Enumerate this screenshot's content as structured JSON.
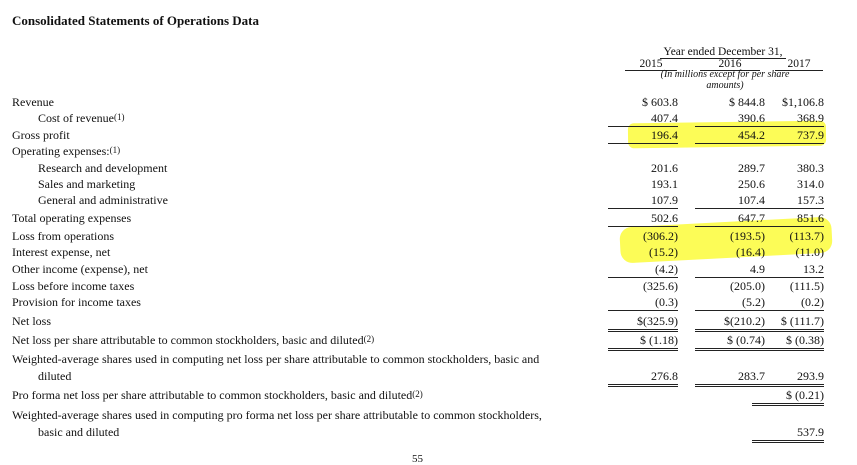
{
  "title": "Consolidated Statements of Operations Data",
  "header": {
    "period": "Year ended December 31,",
    "years": [
      "2015",
      "2016",
      "2017"
    ],
    "note": "(In millions except for per share amounts)"
  },
  "rows": [
    {
      "label": "Revenue",
      "sup": "",
      "v": [
        "$ 603.8",
        "$ 844.8",
        "$1,106.8"
      ]
    },
    {
      "label": "Cost of revenue",
      "sup": "(1)",
      "v": [
        "407.4",
        "390.6",
        "368.9"
      ]
    },
    {
      "label": "Gross profit",
      "sup": "",
      "v": [
        "196.4",
        "454.2",
        "737.9"
      ]
    },
    {
      "label": "Operating expenses:",
      "sup": "(1)",
      "v": [
        "",
        "",
        ""
      ]
    },
    {
      "label": "Research and development",
      "sup": "",
      "v": [
        "201.6",
        "289.7",
        "380.3"
      ]
    },
    {
      "label": "Sales and marketing",
      "sup": "",
      "v": [
        "193.1",
        "250.6",
        "314.0"
      ]
    },
    {
      "label": "General and administrative",
      "sup": "",
      "v": [
        "107.9",
        "107.4",
        "157.3"
      ]
    },
    {
      "label": "Total operating expenses",
      "sup": "",
      "v": [
        "502.6",
        "647.7",
        "851.6"
      ]
    },
    {
      "label": "Loss from operations",
      "sup": "",
      "v": [
        "(306.2)",
        "(193.5)",
        "(113.7)"
      ]
    },
    {
      "label": "Interest expense, net",
      "sup": "",
      "v": [
        "(15.2)",
        "(16.4)",
        "(11.0)"
      ]
    },
    {
      "label": "Other income (expense), net",
      "sup": "",
      "v": [
        "(4.2)",
        "4.9",
        "13.2"
      ]
    },
    {
      "label": "Loss before income taxes",
      "sup": "",
      "v": [
        "(325.6)",
        "(205.0)",
        "(111.5)"
      ]
    },
    {
      "label": "Provision for income taxes",
      "sup": "",
      "v": [
        "(0.3)",
        "(5.2)",
        "(0.2)"
      ]
    },
    {
      "label": "Net loss",
      "sup": "",
      "v": [
        "$(325.9)",
        "$(210.2)",
        "$ (111.7)"
      ]
    },
    {
      "label": "Net loss per share attributable to common stockholders, basic and diluted",
      "sup": "(2)",
      "v": [
        "$ (1.18)",
        "$ (0.74)",
        "$ (0.38)"
      ]
    },
    {
      "label": "Weighted-average shares used in computing net loss per share attributable to common stockholders, basic and",
      "label2": "diluted",
      "sup": "",
      "v": [
        "276.8",
        "283.7",
        "293.9"
      ]
    },
    {
      "label": "Pro forma net loss per share attributable to common stockholders, basic and diluted",
      "sup": "(2)",
      "v": [
        "",
        "",
        "$ (0.21)"
      ]
    },
    {
      "label": "Weighted-average shares used in computing pro forma net loss per share attributable to common stockholders,",
      "label2": "basic and diluted",
      "sup": "",
      "v": [
        "",
        "",
        "537.9"
      ]
    }
  ],
  "page_number": "55"
}
